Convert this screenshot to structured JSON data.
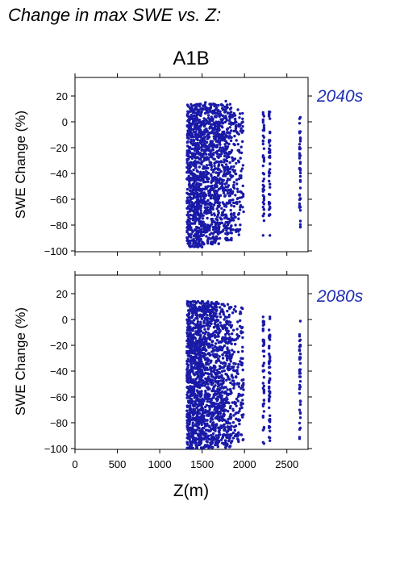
{
  "page": {
    "title": "Change in max SWE vs. Z:",
    "scenario": "A1B",
    "xlabel": "Z(m)",
    "ylabel": "SWE Change (%)",
    "point_color": "#1a1aa8",
    "period_color": "#1f2fb5"
  },
  "chart_data": [
    {
      "type": "scatter",
      "title": "A1B",
      "period_label": "2040s",
      "xlabel": "",
      "ylabel": "SWE Change (%)",
      "xlim": [
        0,
        2750
      ],
      "ylim": [
        -100,
        30
      ],
      "xticks": [
        0,
        500,
        1000,
        1500,
        2000,
        2500
      ],
      "yticks": [
        20,
        0,
        -20,
        -40,
        -60,
        -80,
        -100
      ],
      "ytick_labels": [
        "20",
        "0",
        "−20",
        "−40",
        "−60",
        "−80",
        "−100"
      ],
      "grid": false,
      "series": [
        {
          "color": "#1a1aa8",
          "point_groups": [
            {
              "x_range": [
                1320,
                1500
              ],
              "y_range": [
                -97,
                14
              ],
              "count": 700
            },
            {
              "x_range": [
                1500,
                1700
              ],
              "y_range": [
                -95,
                14
              ],
              "count": 550
            },
            {
              "x_range": [
                1700,
                1850
              ],
              "y_range": [
                -92,
                14
              ],
              "count": 300
            },
            {
              "x_range": [
                1850,
                1990
              ],
              "y_range": [
                -88,
                10
              ],
              "count": 130
            },
            {
              "x_values": [
                2220,
                2230,
                2290,
                2300
              ],
              "y_range": [
                -77,
                8
              ],
              "count": 100
            },
            {
              "x_values": [
                2650,
                2660
              ],
              "y_range": [
                -84,
                4
              ],
              "count": 45
            }
          ],
          "points": [
            [
              2220,
              -88
            ],
            [
              2300,
              -88
            ],
            [
              1500,
              -97
            ],
            [
              1780,
              16
            ],
            [
              1540,
              15
            ]
          ]
        }
      ]
    },
    {
      "type": "scatter",
      "period_label": "2080s",
      "xlabel": "Z(m)",
      "ylabel": "SWE Change (%)",
      "xlim": [
        0,
        2750
      ],
      "ylim": [
        -100,
        35
      ],
      "xticks": [
        0,
        500,
        1000,
        1500,
        2000,
        2500
      ],
      "xtick_labels": [
        "0",
        "500",
        "1000",
        "1500",
        "2000",
        "2500"
      ],
      "yticks": [
        20,
        0,
        -20,
        -40,
        -60,
        -80,
        -100
      ],
      "ytick_labels": [
        "20",
        "0",
        "−20",
        "−40",
        "−60",
        "−80",
        "−100"
      ],
      "grid": false,
      "series": [
        {
          "color": "#1a1aa8",
          "point_groups": [
            {
              "x_range": [
                1320,
                1500
              ],
              "y_range": [
                -100,
                14
              ],
              "count": 750
            },
            {
              "x_range": [
                1500,
                1700
              ],
              "y_range": [
                -100,
                14
              ],
              "count": 600
            },
            {
              "x_range": [
                1700,
                1850
              ],
              "y_range": [
                -100,
                13
              ],
              "count": 320
            },
            {
              "x_range": [
                1850,
                1990
              ],
              "y_range": [
                -96,
                10
              ],
              "count": 140
            },
            {
              "x_values": [
                2220,
                2230,
                2290,
                2300
              ],
              "y_range": [
                -98,
                2
              ],
              "count": 110
            },
            {
              "x_values": [
                2650,
                2660
              ],
              "y_range": [
                -94,
                0
              ],
              "count": 45
            }
          ],
          "points": [
            [
              1500,
              14
            ],
            [
              1400,
              14
            ],
            [
              2220,
              2
            ],
            [
              2300,
              2
            ]
          ]
        }
      ]
    }
  ]
}
